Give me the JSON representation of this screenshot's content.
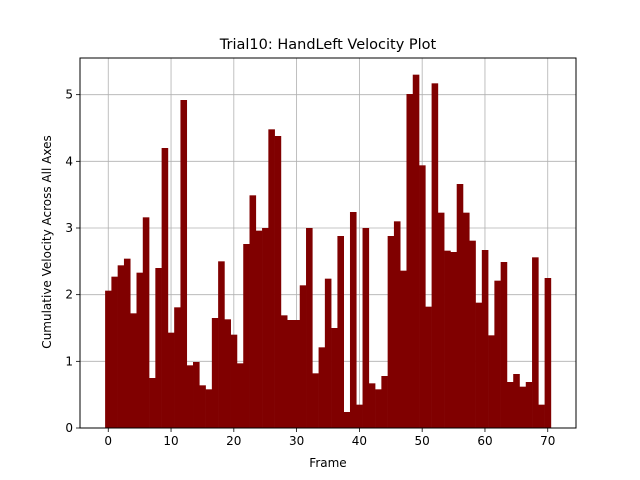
{
  "chart_data": {
    "type": "bar",
    "title": "Trial10: HandLeft Velocity Plot",
    "xlabel": "Frame",
    "ylabel": "Cumulative Velocity Across All Axes",
    "xlim": [
      -4.5,
      74.5
    ],
    "ylim": [
      0,
      5.55
    ],
    "xticks": [
      0,
      10,
      20,
      30,
      40,
      50,
      60,
      70
    ],
    "yticks": [
      0,
      1,
      2,
      3,
      4,
      5
    ],
    "grid": true,
    "bar_color": "#800000",
    "x": [
      0,
      1,
      2,
      3,
      4,
      5,
      6,
      7,
      8,
      9,
      10,
      11,
      12,
      13,
      14,
      15,
      16,
      17,
      18,
      19,
      20,
      21,
      22,
      23,
      24,
      25,
      26,
      27,
      28,
      29,
      30,
      31,
      32,
      33,
      34,
      35,
      36,
      37,
      38,
      39,
      40,
      41,
      42,
      43,
      44,
      45,
      46,
      47,
      48,
      49,
      50,
      51,
      52,
      53,
      54,
      55,
      56,
      57,
      58,
      59,
      60,
      61,
      62,
      63,
      64,
      65,
      66,
      67,
      68,
      69,
      70
    ],
    "values": [
      2.06,
      2.27,
      2.44,
      2.54,
      1.72,
      2.33,
      3.16,
      0.75,
      2.4,
      4.2,
      1.43,
      1.81,
      4.92,
      0.94,
      0.99,
      0.64,
      0.58,
      1.65,
      2.5,
      1.63,
      1.4,
      0.97,
      2.76,
      3.49,
      2.96,
      3.0,
      4.48,
      4.38,
      1.69,
      1.62,
      1.62,
      2.14,
      3.0,
      0.82,
      1.21,
      2.24,
      1.5,
      2.88,
      0.24,
      3.24,
      0.35,
      3.0,
      0.67,
      0.58,
      0.78,
      2.88,
      3.1,
      2.36,
      5.01,
      5.3,
      3.94,
      1.82,
      5.17,
      3.23,
      2.66,
      2.64,
      3.66,
      3.23,
      2.81,
      1.88,
      2.67,
      1.39,
      2.21,
      2.49,
      0.69,
      0.81,
      0.62,
      0.69,
      2.56,
      0.35,
      2.25
    ]
  }
}
